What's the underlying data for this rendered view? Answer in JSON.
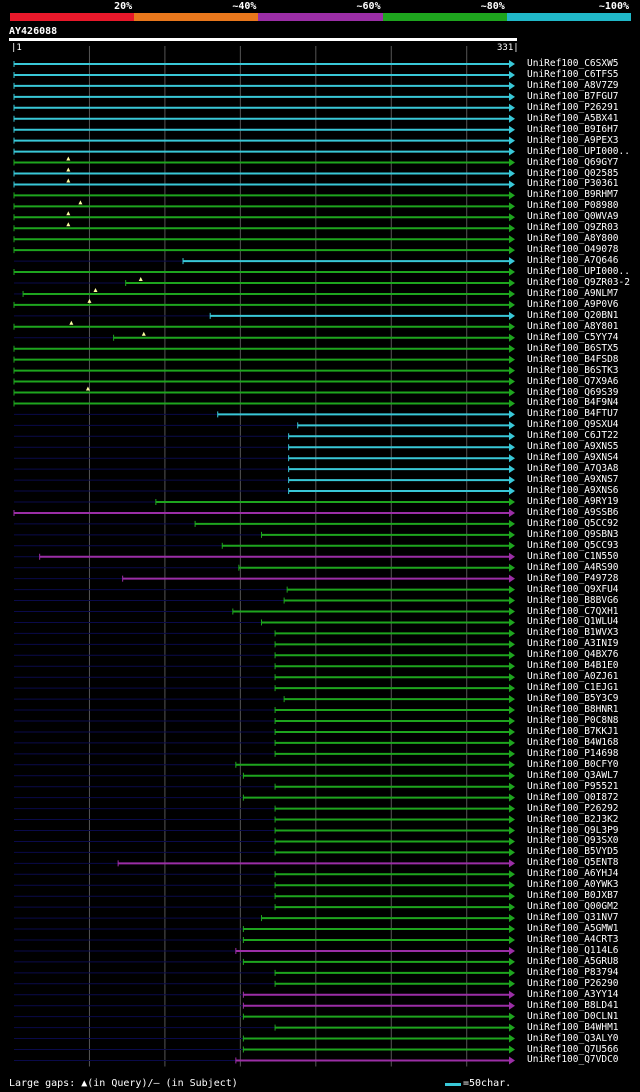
{
  "legend": [
    {
      "label": "20%",
      "color": "#e8182a"
    },
    {
      "label": "~40%",
      "color": "#e8771c"
    },
    {
      "label": "~60%",
      "color": "#9b2ea6"
    },
    {
      "label": "~80%",
      "color": "#1ea51e"
    },
    {
      "label": "~100%",
      "color": "#20b8c8"
    }
  ],
  "query": {
    "name": "AY426088",
    "start": "1",
    "end": "331",
    "length": 331
  },
  "footer": {
    "gaps_note": "Large gaps: ▲(in Query)/– (in Subject)",
    "scale_note": "=50char.",
    "scale_color": "#39c8d8"
  },
  "colors": {
    "cyan": "#39c8d8",
    "green": "#1ea51e",
    "purple": "#9b2ea6",
    "dark": "#0a0a4a",
    "grid": "#555"
  },
  "hits": [
    {
      "label": "UniRef100_C6SXW5",
      "start": 1,
      "end": 331,
      "color": "cyan"
    },
    {
      "label": "UniRef100_C6TFS5",
      "start": 1,
      "end": 331,
      "color": "cyan"
    },
    {
      "label": "UniRef100_A8V7Z9",
      "start": 1,
      "end": 331,
      "color": "cyan"
    },
    {
      "label": "UniRef100_B7FGU7",
      "start": 1,
      "end": 331,
      "color": "cyan"
    },
    {
      "label": "UniRef100_P26291",
      "start": 1,
      "end": 331,
      "color": "cyan"
    },
    {
      "label": "UniRef100_A5BX41",
      "start": 1,
      "end": 331,
      "color": "cyan"
    },
    {
      "label": "UniRef100_B9I6H7",
      "start": 1,
      "end": 331,
      "color": "cyan"
    },
    {
      "label": "UniRef100_A9PEX3",
      "start": 1,
      "end": 331,
      "color": "cyan"
    },
    {
      "label": "UniRef100_UPI000..",
      "start": 1,
      "end": 331,
      "color": "cyan"
    },
    {
      "label": "UniRef100_Q69GY7",
      "start": 1,
      "end": 331,
      "color": "green",
      "gapq": [
        37
      ]
    },
    {
      "label": "UniRef100_Q02585",
      "start": 1,
      "end": 331,
      "color": "cyan",
      "gapq": [
        37
      ]
    },
    {
      "label": "UniRef100_P30361",
      "start": 1,
      "end": 331,
      "color": "cyan",
      "gapq": [
        37
      ]
    },
    {
      "label": "UniRef100_B9RHM7",
      "start": 1,
      "end": 331,
      "color": "green"
    },
    {
      "label": "UniRef100_P08980",
      "start": 1,
      "end": 331,
      "color": "green",
      "gapq": [
        45
      ]
    },
    {
      "label": "UniRef100_Q0WVA9",
      "start": 1,
      "end": 331,
      "color": "green",
      "gapq": [
        37
      ]
    },
    {
      "label": "UniRef100_Q9ZR03",
      "start": 1,
      "end": 331,
      "color": "green",
      "gapq": [
        37
      ]
    },
    {
      "label": "UniRef100_A8Y800",
      "start": 1,
      "end": 331,
      "color": "green"
    },
    {
      "label": "UniRef100_O49078",
      "start": 1,
      "end": 331,
      "color": "green"
    },
    {
      "label": "UniRef100_A7Q646",
      "start": 113,
      "end": 331,
      "color": "cyan"
    },
    {
      "label": "UniRef100_UPI000..",
      "start": 1,
      "end": 331,
      "color": "green"
    },
    {
      "label": "UniRef100_Q9ZR03-2",
      "start": 75,
      "end": 331,
      "color": "green",
      "gapq": [
        85
      ]
    },
    {
      "label": "UniRef100_A9NLM7",
      "start": 7,
      "end": 331,
      "color": "green",
      "gapq": [
        55
      ]
    },
    {
      "label": "UniRef100_A9P0V6",
      "start": 1,
      "end": 331,
      "color": "green",
      "gapq": [
        51
      ]
    },
    {
      "label": "UniRef100_Q20BN1",
      "start": 131,
      "end": 331,
      "color": "cyan"
    },
    {
      "label": "UniRef100_A8Y801",
      "start": 1,
      "end": 331,
      "color": "green",
      "gapq": [
        39
      ]
    },
    {
      "label": "UniRef100_C5YY74",
      "start": 67,
      "end": 331,
      "color": "green",
      "gapq": [
        87
      ]
    },
    {
      "label": "UniRef100_B6STX5",
      "start": 1,
      "end": 331,
      "color": "green"
    },
    {
      "label": "UniRef100_B4FSD8",
      "start": 1,
      "end": 331,
      "color": "green"
    },
    {
      "label": "UniRef100_B6STK3",
      "start": 1,
      "end": 331,
      "color": "green"
    },
    {
      "label": "UniRef100_Q7X9A6",
      "start": 1,
      "end": 331,
      "color": "green"
    },
    {
      "label": "UniRef100_Q69S39",
      "start": 1,
      "end": 331,
      "color": "green",
      "gapq": [
        50
      ]
    },
    {
      "label": "UniRef100_B4F9N4",
      "start": 1,
      "end": 331,
      "color": "green"
    },
    {
      "label": "UniRef100_B4FTU7",
      "start": 136,
      "end": 331,
      "color": "cyan"
    },
    {
      "label": "UniRef100_Q9SXU4",
      "start": 189,
      "end": 331,
      "color": "cyan"
    },
    {
      "label": "UniRef100_C6JT22",
      "start": 183,
      "end": 331,
      "color": "cyan"
    },
    {
      "label": "UniRef100_A9XNS5",
      "start": 183,
      "end": 331,
      "color": "cyan"
    },
    {
      "label": "UniRef100_A9XNS4",
      "start": 183,
      "end": 331,
      "color": "cyan"
    },
    {
      "label": "UniRef100_A7Q3A8",
      "start": 183,
      "end": 331,
      "color": "cyan"
    },
    {
      "label": "UniRef100_A9XNS7",
      "start": 183,
      "end": 331,
      "color": "cyan"
    },
    {
      "label": "UniRef100_A9XNS6",
      "start": 183,
      "end": 331,
      "color": "cyan"
    },
    {
      "label": "UniRef100_A9RY19",
      "start": 95,
      "end": 331,
      "color": "green"
    },
    {
      "label": "UniRef100_A9SSB6",
      "start": 1,
      "end": 331,
      "color": "purple"
    },
    {
      "label": "UniRef100_Q5CC92",
      "start": 121,
      "end": 331,
      "color": "green"
    },
    {
      "label": "UniRef100_Q9SBN3",
      "start": 165,
      "end": 331,
      "color": "green"
    },
    {
      "label": "UniRef100_Q5CC93",
      "start": 139,
      "end": 331,
      "color": "green"
    },
    {
      "label": "UniRef100_C1N550",
      "start": 18,
      "end": 331,
      "color": "purple"
    },
    {
      "label": "UniRef100_A4RS90",
      "start": 150,
      "end": 331,
      "color": "green"
    },
    {
      "label": "UniRef100_P49728",
      "start": 73,
      "end": 331,
      "color": "purple"
    },
    {
      "label": "UniRef100_Q9XFU4",
      "start": 182,
      "end": 331,
      "color": "green"
    },
    {
      "label": "UniRef100_B8BVG6",
      "start": 180,
      "end": 331,
      "color": "green"
    },
    {
      "label": "UniRef100_C7QXH1",
      "start": 146,
      "end": 331,
      "color": "green"
    },
    {
      "label": "UniRef100_Q1WLU4",
      "start": 165,
      "end": 331,
      "color": "green"
    },
    {
      "label": "UniRef100_B1WVX3",
      "start": 174,
      "end": 331,
      "color": "green"
    },
    {
      "label": "UniRef100_A3INI9",
      "start": 174,
      "end": 331,
      "color": "green"
    },
    {
      "label": "UniRef100_Q4BX76",
      "start": 174,
      "end": 331,
      "color": "green"
    },
    {
      "label": "UniRef100_B4B1E0",
      "start": 174,
      "end": 331,
      "color": "green"
    },
    {
      "label": "UniRef100_A0ZJ61",
      "start": 174,
      "end": 331,
      "color": "green"
    },
    {
      "label": "UniRef100_C1EJG1",
      "start": 174,
      "end": 331,
      "color": "green"
    },
    {
      "label": "UniRef100_B5Y3C9",
      "start": 180,
      "end": 331,
      "color": "green"
    },
    {
      "label": "UniRef100_B8HNR1",
      "start": 174,
      "end": 331,
      "color": "green"
    },
    {
      "label": "UniRef100_P0C8N8",
      "start": 174,
      "end": 331,
      "color": "green"
    },
    {
      "label": "UniRef100_B7KKJ1",
      "start": 174,
      "end": 331,
      "color": "green"
    },
    {
      "label": "UniRef100_B4W168",
      "start": 174,
      "end": 331,
      "color": "green"
    },
    {
      "label": "UniRef100_P14698",
      "start": 174,
      "end": 331,
      "color": "green"
    },
    {
      "label": "UniRef100_B0CFY0",
      "start": 148,
      "end": 331,
      "color": "green"
    },
    {
      "label": "UniRef100_Q3AWL7",
      "start": 153,
      "end": 331,
      "color": "green"
    },
    {
      "label": "UniRef100_P95521",
      "start": 174,
      "end": 331,
      "color": "green"
    },
    {
      "label": "UniRef100_Q0I872",
      "start": 153,
      "end": 331,
      "color": "green"
    },
    {
      "label": "UniRef100_P26292",
      "start": 174,
      "end": 331,
      "color": "green"
    },
    {
      "label": "UniRef100_B2J3K2",
      "start": 174,
      "end": 331,
      "color": "green"
    },
    {
      "label": "UniRef100_Q9L3P9",
      "start": 174,
      "end": 331,
      "color": "green"
    },
    {
      "label": "UniRef100_Q93SX0",
      "start": 174,
      "end": 331,
      "color": "green"
    },
    {
      "label": "UniRef100_B5VYD5",
      "start": 174,
      "end": 331,
      "color": "green"
    },
    {
      "label": "UniRef100_Q5ENT8",
      "start": 70,
      "end": 331,
      "color": "purple"
    },
    {
      "label": "UniRef100_A6YHJ4",
      "start": 174,
      "end": 331,
      "color": "green"
    },
    {
      "label": "UniRef100_A0YWK3",
      "start": 174,
      "end": 331,
      "color": "green"
    },
    {
      "label": "UniRef100_B0JXB7",
      "start": 174,
      "end": 331,
      "color": "green"
    },
    {
      "label": "UniRef100_Q00GM2",
      "start": 174,
      "end": 331,
      "color": "green"
    },
    {
      "label": "UniRef100_Q31NV7",
      "start": 165,
      "end": 331,
      "color": "green"
    },
    {
      "label": "UniRef100_A5GMW1",
      "start": 153,
      "end": 331,
      "color": "green"
    },
    {
      "label": "UniRef100_A4CRT3",
      "start": 153,
      "end": 331,
      "color": "green"
    },
    {
      "label": "UniRef100_Q114L6",
      "start": 148,
      "end": 331,
      "color": "purple"
    },
    {
      "label": "UniRef100_A5GRU8",
      "start": 153,
      "end": 331,
      "color": "green"
    },
    {
      "label": "UniRef100_P83794",
      "start": 174,
      "end": 331,
      "color": "green"
    },
    {
      "label": "UniRef100_P26290",
      "start": 174,
      "end": 331,
      "color": "green"
    },
    {
      "label": "UniRef100_A3YY14",
      "start": 153,
      "end": 331,
      "color": "purple"
    },
    {
      "label": "UniRef100_B8LD41",
      "start": 153,
      "end": 331,
      "color": "purple"
    },
    {
      "label": "UniRef100_D0CLN1",
      "start": 153,
      "end": 331,
      "color": "green"
    },
    {
      "label": "UniRef100_B4WHM1",
      "start": 174,
      "end": 331,
      "color": "green"
    },
    {
      "label": "UniRef100_Q3ALY0",
      "start": 153,
      "end": 331,
      "color": "green"
    },
    {
      "label": "UniRef100_Q7U566",
      "start": 153,
      "end": 331,
      "color": "green"
    },
    {
      "label": "UniRef100_Q7VDC0",
      "start": 148,
      "end": 331,
      "color": "purple"
    }
  ]
}
